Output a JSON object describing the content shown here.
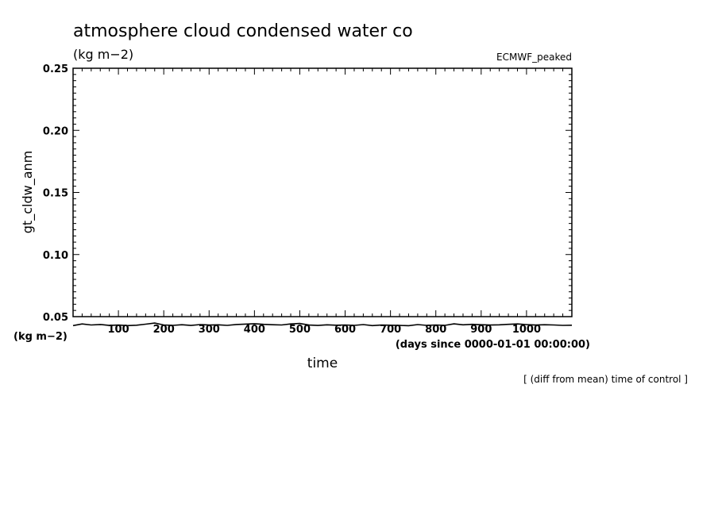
{
  "chart_data": {
    "type": "line",
    "title": "atmosphere cloud condensed water co",
    "units_label": "(kg m−2)",
    "dataset_label": "ECMWF_peaked",
    "ylabel": "gt_cldw_anm",
    "y_units_label": "(kg m−2)",
    "xlabel": "time",
    "x_units_label": "(days since 0000-01-01 00:00:00)",
    "footnote": "[ (diff from mean) time of control ]",
    "xlim": [
      0,
      1100
    ],
    "ylim": [
      0.05,
      0.25
    ],
    "x_ticks": [
      100,
      200,
      300,
      400,
      500,
      600,
      700,
      800,
      900,
      1000
    ],
    "x_tick_labels": [
      "100",
      "200",
      "300",
      "400",
      "500",
      "600",
      "700",
      "800",
      "900",
      "1000"
    ],
    "y_ticks": [
      0.05,
      0.1,
      0.15,
      0.2,
      0.25
    ],
    "y_tick_labels": [
      "0.05",
      "0.10",
      "0.15",
      "0.20",
      "0.25"
    ],
    "series": [
      {
        "x": [
          0,
          20,
          40,
          60,
          80,
          100,
          120,
          140,
          160,
          180,
          200,
          220,
          240,
          260,
          280,
          300,
          320,
          340,
          360,
          380,
          400,
          420,
          440,
          460,
          480,
          500,
          520,
          540,
          560,
          580,
          600,
          620,
          640,
          660,
          680,
          700,
          720,
          740,
          760,
          780,
          800,
          820,
          840,
          860,
          880,
          900,
          920,
          940,
          960,
          980,
          1000,
          1020,
          1040,
          1060,
          1080,
          1100
        ],
        "y": [
          0.0428,
          0.0441,
          0.0433,
          0.0437,
          0.0429,
          0.0432,
          0.0428,
          0.0431,
          0.0439,
          0.0448,
          0.0433,
          0.043,
          0.0435,
          0.0429,
          0.0436,
          0.0432,
          0.0434,
          0.043,
          0.0437,
          0.044,
          0.0443,
          0.0438,
          0.0435,
          0.0433,
          0.0441,
          0.0445,
          0.0432,
          0.0429,
          0.0434,
          0.0431,
          0.0433,
          0.043,
          0.0436,
          0.0428,
          0.0432,
          0.0431,
          0.0429,
          0.0427,
          0.0436,
          0.043,
          0.0433,
          0.043,
          0.0442,
          0.0434,
          0.0438,
          0.0435,
          0.0432,
          0.0434,
          0.0438,
          0.0441,
          0.0436,
          0.0432,
          0.0435,
          0.0433,
          0.043,
          0.0431
        ]
      }
    ]
  }
}
